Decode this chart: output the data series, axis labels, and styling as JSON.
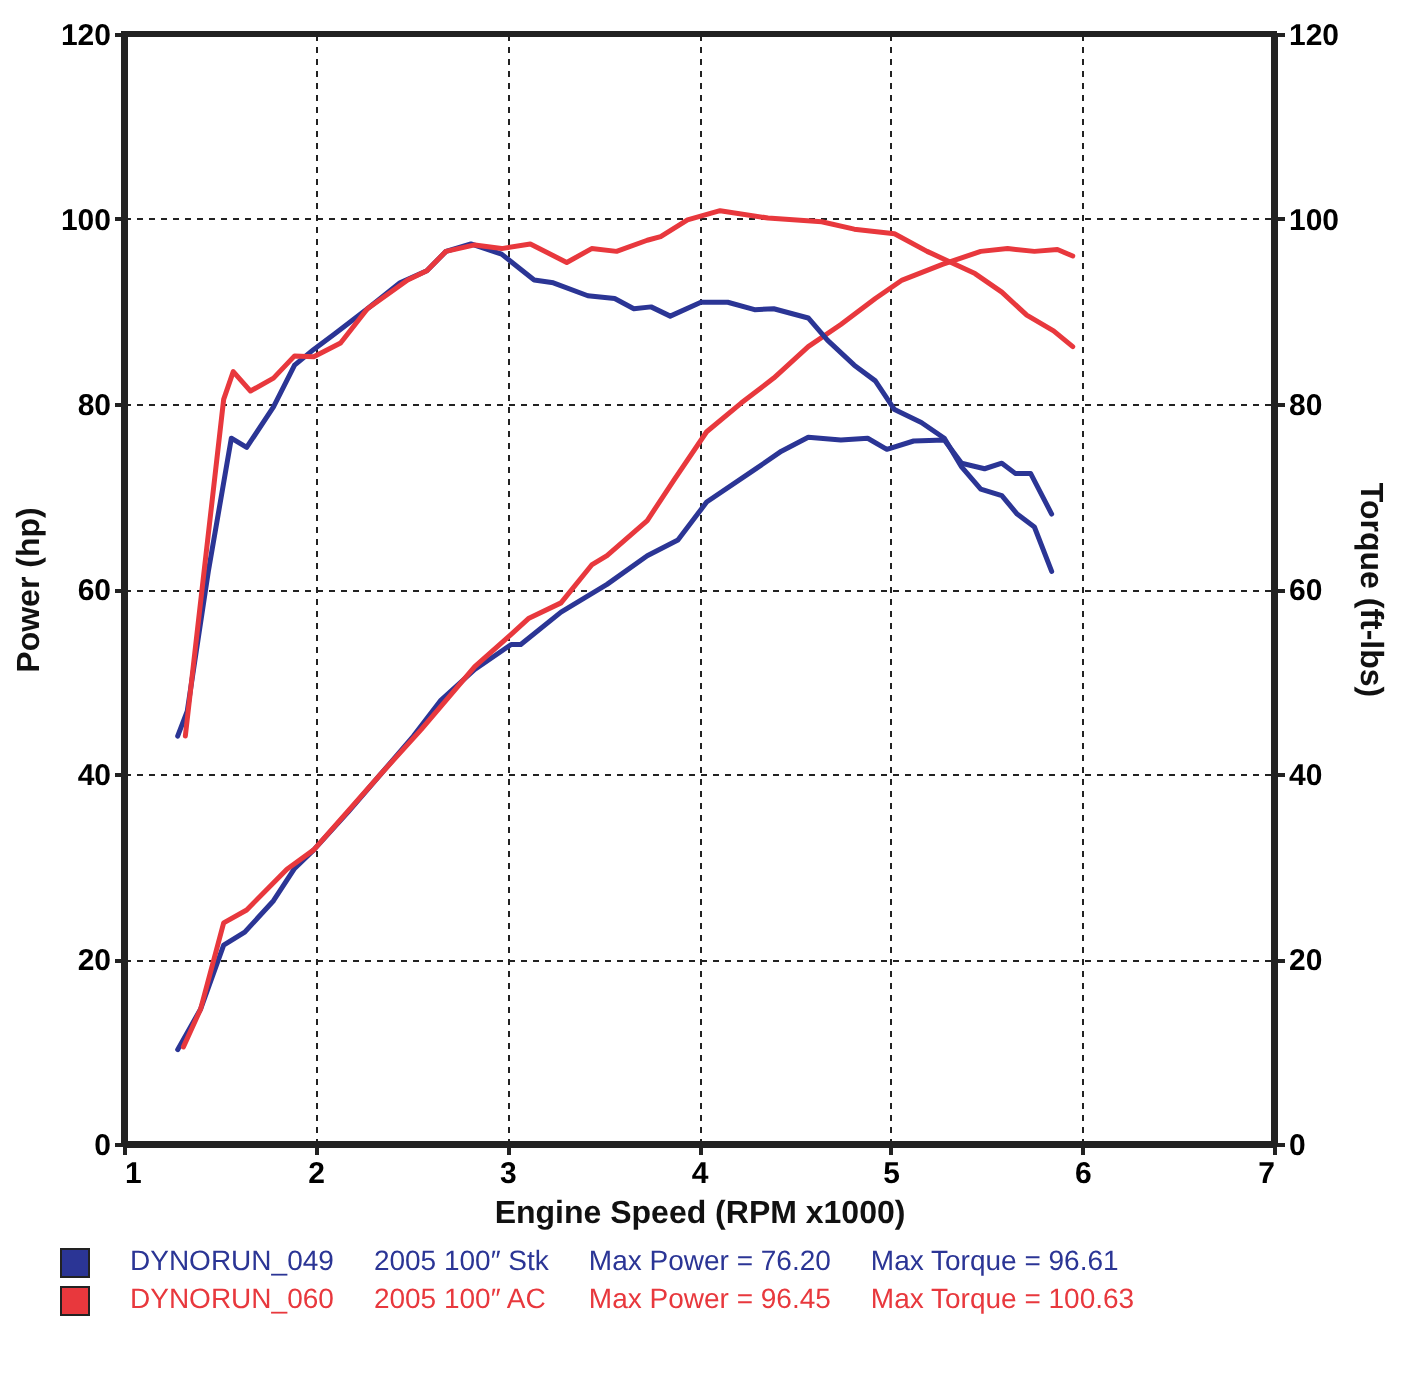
{
  "chart_data": {
    "type": "line",
    "xlabel": "Engine Speed (RPM x1000)",
    "ylabel": "Power (hp)",
    "y2label": "Torque (ft-lbs)",
    "xlim": [
      1,
      7
    ],
    "xticks": [
      1,
      2,
      3,
      4,
      5,
      6,
      7
    ],
    "ylim": [
      0,
      120
    ],
    "yticks": [
      0,
      20,
      40,
      60,
      80,
      100,
      120
    ],
    "y2lim": [
      0,
      120
    ],
    "y2ticks": [
      0,
      20,
      40,
      60,
      80,
      100,
      120
    ],
    "grid": true,
    "legend": "bottom",
    "line_style": "solid",
    "annotations": [
      "2005 100″ Stk",
      "Max Power = 76.20",
      "Max Torque = 96.61",
      "2005 100″ AC",
      "Max Power = 96.45",
      "Max Torque = 100.63"
    ],
    "series": [
      {
        "name": "DYNORUN_049",
        "color": "#2b3595",
        "x": [
          1.28,
          1.4,
          1.52,
          1.63,
          1.78,
          1.89,
          1.99,
          2.17,
          2.34,
          2.51,
          2.65,
          2.83,
          3.02,
          3.07,
          3.28,
          3.52,
          3.73,
          3.89,
          4.04,
          4.29,
          4.43,
          4.57,
          4.74,
          4.88,
          4.98,
          5.12,
          5.28,
          5.37,
          5.49,
          5.58,
          5.65,
          5.73,
          5.84
        ],
        "values": [
          10.2,
          14.6,
          21.5,
          22.9,
          26.3,
          29.8,
          31.8,
          35.9,
          40.0,
          44.1,
          47.9,
          51.3,
          54.0,
          54.0,
          57.5,
          60.5,
          63.6,
          65.3,
          69.4,
          72.9,
          74.9,
          76.4,
          76.1,
          76.3,
          75.1,
          76.0,
          76.1,
          73.6,
          73.0,
          73.6,
          72.5,
          72.5,
          68.1
        ]
      },
      {
        "color": "#2b3595",
        "axis": "y2",
        "x": [
          1.28,
          1.33,
          1.44,
          1.56,
          1.64,
          1.78,
          1.89,
          1.99,
          2.1,
          2.27,
          2.44,
          2.58,
          2.68,
          2.81,
          2.97,
          3.14,
          3.24,
          3.42,
          3.56,
          3.66,
          3.75,
          3.85,
          4.01,
          4.15,
          4.29,
          4.39,
          4.57,
          4.67,
          4.81,
          4.92,
          5.02,
          5.16,
          5.28,
          5.37,
          5.47,
          5.58,
          5.66,
          5.75,
          5.84
        ],
        "values": [
          44.1,
          46.8,
          61.9,
          76.3,
          75.3,
          79.7,
          84.2,
          85.9,
          87.6,
          90.3,
          93.1,
          94.4,
          96.5,
          97.3,
          96.2,
          93.4,
          93.1,
          91.7,
          91.4,
          90.3,
          90.5,
          89.5,
          91.0,
          91.0,
          90.2,
          90.3,
          89.3,
          86.9,
          84.2,
          82.5,
          79.4,
          78.0,
          76.3,
          73.2,
          70.8,
          70.1,
          68.1,
          66.7,
          61.9
        ]
      },
      {
        "name": "DYNORUN_060",
        "color": "#e8383d",
        "x": [
          1.31,
          1.4,
          1.52,
          1.64,
          1.85,
          1.99,
          2.34,
          2.55,
          2.83,
          3.02,
          3.11,
          3.28,
          3.44,
          3.52,
          3.73,
          3.87,
          4.04,
          4.22,
          4.39,
          4.57,
          4.74,
          4.92,
          5.06,
          5.27,
          5.47,
          5.61,
          5.75,
          5.87,
          5.95
        ],
        "values": [
          10.5,
          14.6,
          23.9,
          25.3,
          29.7,
          31.8,
          40.0,
          44.8,
          51.6,
          55.1,
          56.8,
          58.5,
          62.6,
          63.6,
          67.4,
          71.8,
          77.0,
          80.1,
          82.8,
          86.2,
          88.6,
          91.4,
          93.4,
          95.1,
          96.5,
          96.8,
          96.5,
          96.7,
          96.0
        ]
      },
      {
        "color": "#e8383d",
        "axis": "y2",
        "x": [
          1.32,
          1.52,
          1.57,
          1.66,
          1.78,
          1.89,
          1.99,
          2.13,
          2.27,
          2.48,
          2.58,
          2.68,
          2.83,
          2.97,
          3.12,
          3.31,
          3.44,
          3.57,
          3.73,
          3.8,
          3.94,
          4.11,
          4.36,
          4.64,
          4.81,
          5.02,
          5.19,
          5.44,
          5.58,
          5.71,
          5.85,
          5.95
        ],
        "values": [
          44.1,
          80.5,
          83.5,
          81.4,
          82.8,
          85.2,
          85.1,
          86.6,
          90.3,
          93.4,
          94.4,
          96.5,
          97.2,
          96.8,
          97.3,
          95.3,
          96.8,
          96.5,
          97.7,
          98.1,
          99.9,
          100.9,
          100.1,
          99.7,
          98.9,
          98.4,
          96.5,
          94.1,
          92.1,
          89.6,
          87.9,
          86.2
        ]
      }
    ]
  }
}
